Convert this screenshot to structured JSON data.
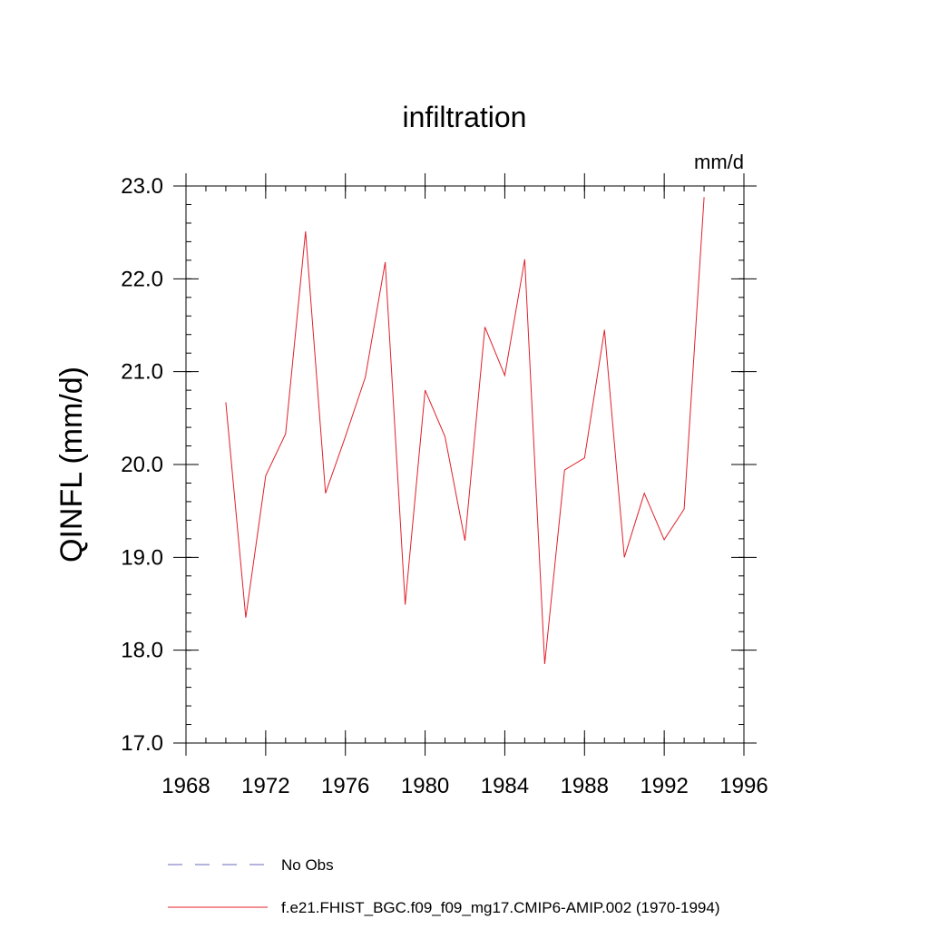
{
  "chart_data": {
    "type": "line",
    "title": "infiltration",
    "units": "mm/d",
    "ylabel": "QINFL  (mm/d)",
    "xlabel": "",
    "xlim": [
      1968,
      1996
    ],
    "ylim": [
      17.0,
      23.0
    ],
    "x_ticks": [
      1968,
      1972,
      1976,
      1980,
      1984,
      1988,
      1992,
      1996
    ],
    "y_ticks": [
      "17.0",
      "18.0",
      "19.0",
      "20.0",
      "21.0",
      "22.0",
      "23.0"
    ],
    "series": [
      {
        "name": "f.e21.FHIST_BGC.f09_f09_mg17.CMIP6-AMIP.002 (1970-1994)",
        "color": "#e0202a",
        "style": "solid",
        "x": [
          1970,
          1971,
          1972,
          1973,
          1974,
          1975,
          1976,
          1977,
          1978,
          1979,
          1980,
          1981,
          1982,
          1983,
          1984,
          1985,
          1986,
          1987,
          1988,
          1989,
          1990,
          1991,
          1992,
          1993,
          1994
        ],
        "values": [
          20.67,
          18.35,
          19.88,
          20.33,
          22.51,
          19.69,
          20.3,
          20.94,
          22.18,
          18.49,
          20.8,
          20.3,
          19.18,
          21.48,
          20.96,
          22.21,
          17.85,
          19.94,
          20.07,
          21.45,
          19.0,
          19.69,
          19.19,
          19.52,
          22.88
        ]
      }
    ],
    "legend": [
      {
        "label": "No Obs",
        "color": "#6a6ab8",
        "style": "dashed"
      },
      {
        "label": "f.e21.FHIST_BGC.f09_f09_mg17.CMIP6-AMIP.002 (1970-1994)",
        "color": "#e0202a",
        "style": "solid"
      }
    ]
  }
}
